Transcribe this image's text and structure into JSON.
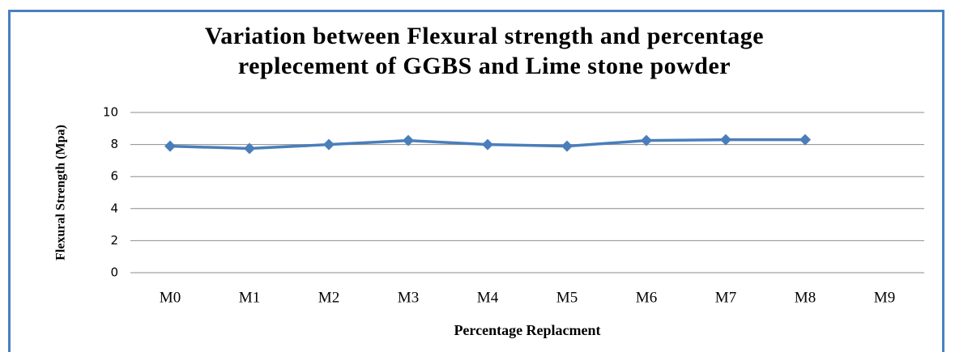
{
  "chart_data": {
    "type": "line",
    "title": "Variation between Flexural strength and percentage replecement of GGBS and Lime stone powder",
    "x_label": "Percentage Replacment",
    "y_label": "Flexural Strength (Mpa)",
    "categories": [
      "M0",
      "M1",
      "M2",
      "M3",
      "M4",
      "M5",
      "M6",
      "M7",
      "M8",
      "M9"
    ],
    "series": [
      {
        "name": "Flexural Strength",
        "color": "#4a7ebb",
        "values": [
          7.9,
          7.75,
          8.0,
          8.25,
          8.0,
          7.9,
          8.25,
          8.3,
          8.3,
          null
        ]
      }
    ],
    "ylim": [
      0,
      10
    ],
    "yticks": [
      0,
      2,
      4,
      6,
      8,
      10
    ],
    "grid": true
  }
}
